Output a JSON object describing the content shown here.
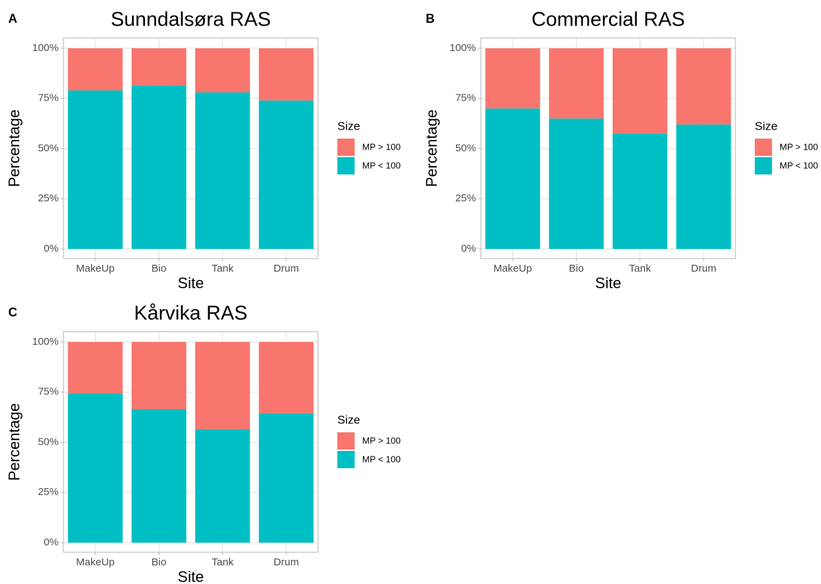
{
  "chart_data": [
    {
      "type": "bar",
      "stacked": true,
      "panel_label": "A",
      "title": "Sunndalsøra RAS",
      "x_label": "Site",
      "y_label": "Percentage",
      "legend_title": "Size",
      "categories": [
        "MakeUp",
        "Bio",
        "Tank",
        "Drum"
      ],
      "series": [
        {
          "name": "MP > 100",
          "color": "#F8766D",
          "values": [
            21,
            18.5,
            22,
            26
          ]
        },
        {
          "name": "MP < 100",
          "color": "#00BFC4",
          "values": [
            79,
            81.5,
            78,
            74
          ]
        }
      ],
      "ylim": [
        0,
        100
      ],
      "yticks": [
        {
          "value": 0,
          "label": "0%"
        },
        {
          "value": 25,
          "label": "25%"
        },
        {
          "value": 50,
          "label": "50%"
        },
        {
          "value": 75,
          "label": "75%"
        },
        {
          "value": 100,
          "label": "100%"
        }
      ],
      "grid": true
    },
    {
      "type": "bar",
      "stacked": true,
      "panel_label": "B",
      "title": "Commercial RAS",
      "x_label": "Site",
      "y_label": "Percentage",
      "legend_title": "Size",
      "categories": [
        "MakeUp",
        "Bio",
        "Tank",
        "Drum"
      ],
      "series": [
        {
          "name": "MP > 100",
          "color": "#F8766D",
          "values": [
            30,
            35,
            42.5,
            38
          ]
        },
        {
          "name": "MP < 100",
          "color": "#00BFC4",
          "values": [
            70,
            65,
            57.5,
            62
          ]
        }
      ],
      "ylim": [
        0,
        100
      ],
      "yticks": [
        {
          "value": 0,
          "label": "0%"
        },
        {
          "value": 25,
          "label": "25%"
        },
        {
          "value": 50,
          "label": "50%"
        },
        {
          "value": 75,
          "label": "75%"
        },
        {
          "value": 100,
          "label": "100%"
        }
      ],
      "grid": true
    },
    {
      "type": "bar",
      "stacked": true,
      "panel_label": "C",
      "title": "Kårvika RAS",
      "x_label": "Site",
      "y_label": "Percentage",
      "legend_title": "Size",
      "categories": [
        "MakeUp",
        "Bio",
        "Tank",
        "Drum"
      ],
      "series": [
        {
          "name": "MP > 100",
          "color": "#F8766D",
          "values": [
            25.5,
            33.5,
            43.5,
            35.5
          ]
        },
        {
          "name": "MP < 100",
          "color": "#00BFC4",
          "values": [
            74.5,
            66.5,
            56.5,
            64.5
          ]
        }
      ],
      "ylim": [
        0,
        100
      ],
      "yticks": [
        {
          "value": 0,
          "label": "0%"
        },
        {
          "value": 25,
          "label": "25%"
        },
        {
          "value": 50,
          "label": "50%"
        },
        {
          "value": 75,
          "label": "75%"
        },
        {
          "value": 100,
          "label": "100%"
        }
      ],
      "grid": true
    }
  ]
}
